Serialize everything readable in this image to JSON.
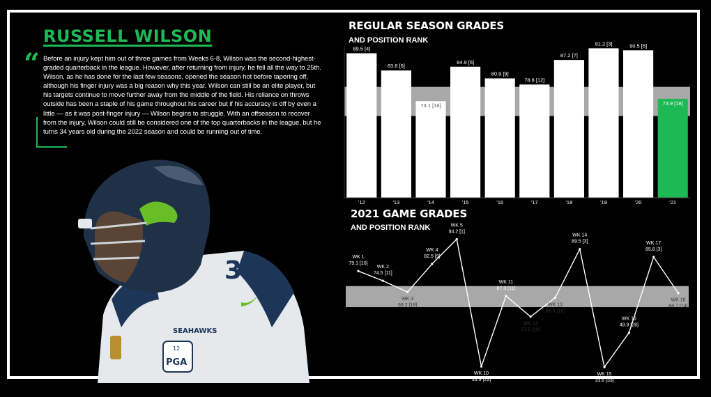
{
  "player": {
    "name": "RUSSELL WILSON",
    "quote_mark": "“",
    "bio": "Before an injury kept him out of three games from Weeks 6-8, Wilson was the second-highest-graded quarterback in the league. However, after returning from injury, he fell all the way to 25th. Wilson, as he has done for the last few seasons, opened the season hot before tapering off, although his finger injury was a big reason why this year. Wilson can still be an elite player, but his targets continue to move further away from the middle of the field. His reliance on throws outside has been a staple of his game throughout his career but if his accuracy is off by even a little — as it was post-finger injury — Wilson begins to struggle. With an offseason to recover from the injury, Wilson could still be considered one of the top quarterbacks in the league, but he turns 34 years old during the 2022 season and could be running out of time.",
    "jersey_text": "SEAHAWKS",
    "patch_text": "PGA",
    "patch_top": "12",
    "number_text": "3"
  },
  "colors": {
    "accent": "#1db954",
    "band": "#a8a8a8",
    "bar": "#ffffff"
  },
  "chart_data": [
    {
      "type": "bar",
      "title": "REGULAR SEASON GRADES",
      "subtitle": "AND POSITION RANK",
      "categories": [
        "'12",
        "'13",
        "'14",
        "'15",
        "'16",
        "'17",
        "'18",
        "'19",
        "'20",
        "'21"
      ],
      "values": [
        89.5,
        83.6,
        73.1,
        84.9,
        80.9,
        78.8,
        87.2,
        91.2,
        90.5,
        73.9
      ],
      "ranks": [
        "[4]",
        "[6]",
        "[16]",
        "[6]",
        "[9]",
        "[12]",
        "[7]",
        "[3]",
        "[6]",
        "[18]"
      ],
      "data_labels": [
        "89.5 [4]",
        "83.6 [6]",
        "73.1 [16]",
        "84.9 [6]",
        "80.9 [9]",
        "78.8 [12]",
        "87.2 [7]",
        "91.2 [3]",
        "90.5 [6]",
        "73.9 [18]"
      ],
      "highlight_index": 9,
      "ylim": [
        40,
        92
      ],
      "band": [
        68,
        78
      ]
    },
    {
      "type": "line",
      "title": "2021 GAME GRADES",
      "subtitle": "AND POSITION RANK",
      "weeks": [
        "WK 1",
        "WK 2",
        "WK 3",
        "WK 4",
        "WK 5",
        "WK 10",
        "WK 11",
        "WK 12",
        "WK 13",
        "WK 14",
        "WK 15",
        "WK 16",
        "WK 17",
        "WK 18"
      ],
      "values": [
        79.1,
        74.5,
        69.2,
        82.5,
        94.2,
        33.9,
        67.3,
        57.5,
        66.5,
        89.5,
        33.6,
        49.9,
        85.8,
        68.7
      ],
      "ranks": [
        "[10]",
        "[11]",
        "[18]",
        "[9]",
        "[1]",
        "[29]",
        "[11]",
        "[19]",
        "[16]",
        "[3]",
        "[33]",
        "[28]",
        "[3]",
        "[14]"
      ],
      "data_labels": [
        "79.1 [10]",
        "74.5 [11]",
        "69.2 [18]",
        "82.5 [9]",
        "94.2 [1]",
        "33.9 [29]",
        "67.3 [11]",
        "57.5 [19]",
        "66.5 [16]",
        "89.5 [3]",
        "33.6 [33]",
        "49.9 [28]",
        "85.8 [3]",
        "68.7 [14]"
      ],
      "label_side": [
        "above",
        "above",
        "below",
        "above",
        "above",
        "below",
        "above",
        "below",
        "below",
        "above",
        "below",
        "above",
        "above",
        "below"
      ],
      "ylim": [
        30,
        96
      ],
      "band": [
        62,
        72
      ]
    }
  ]
}
